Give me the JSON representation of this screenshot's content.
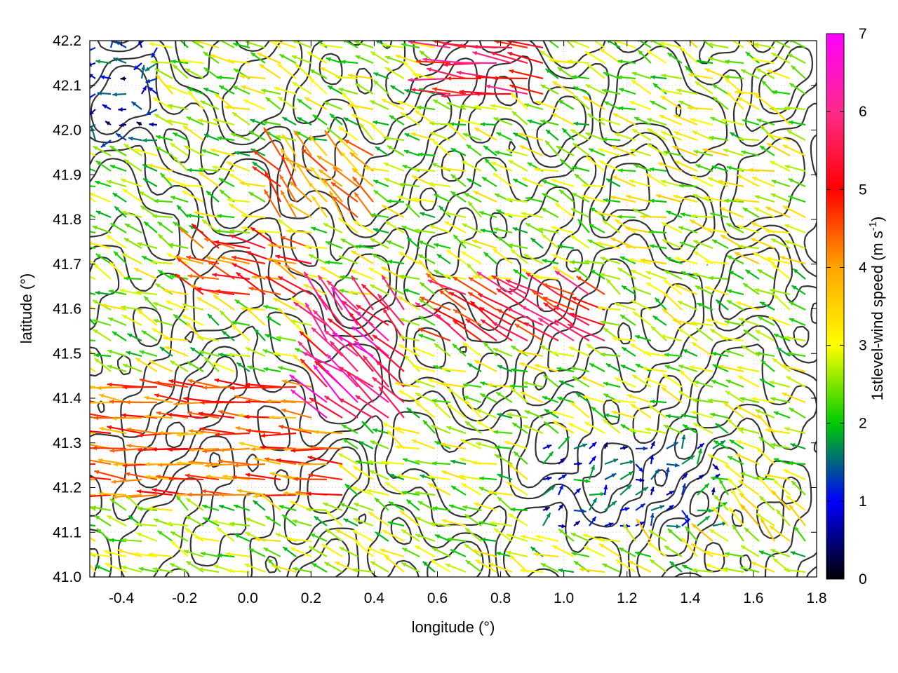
{
  "chart_data": {
    "type": "quiver",
    "title": "",
    "xlabel": "longitude (°)",
    "ylabel": "latitude (°)",
    "xlim": [
      -0.5,
      1.8
    ],
    "ylim": [
      41.0,
      42.2
    ],
    "x_ticks": [
      "-0.4",
      "-0.2",
      "0.0",
      "0.2",
      "0.4",
      "0.6",
      "0.8",
      "1.0",
      "1.2",
      "1.4",
      "1.6",
      "1.8"
    ],
    "y_ticks": [
      "41.0",
      "41.1",
      "41.2",
      "41.3",
      "41.4",
      "41.5",
      "41.6",
      "41.7",
      "41.8",
      "41.9",
      "42.0",
      "42.1",
      "42.2"
    ],
    "grid": "dotted",
    "colorbar": {
      "label_main": "1stlevel-wind speed (m s",
      "label_sup": "-1",
      "label_end": ")",
      "range": [
        0,
        7
      ],
      "ticks": [
        "0",
        "1",
        "2",
        "3",
        "4",
        "5",
        "6",
        "7"
      ],
      "colors": [
        "#000000",
        "#0000ff",
        "#00cc00",
        "#ffff00",
        "#ffa500",
        "#ff0000",
        "#ff00ff"
      ]
    },
    "wind_regions": [
      {
        "lon": [
          -0.5,
          0.3
        ],
        "lat": [
          41.15,
          41.45
        ],
        "u": -4.2,
        "v": 0.35,
        "speed": 4.3
      },
      {
        "lon": [
          -0.15,
          0.25
        ],
        "lat": [
          41.6,
          41.75
        ],
        "u": -2.2,
        "v": 0.9,
        "speed": 4.6
      },
      {
        "lon": [
          0.25,
          0.5
        ],
        "lat": [
          41.35,
          41.6
        ],
        "u": -2.0,
        "v": 1.8,
        "speed": 6.0
      },
      {
        "lon": [
          0.6,
          1.15
        ],
        "lat": [
          41.5,
          41.65
        ],
        "u": -3.0,
        "v": 1.6,
        "speed": 5.2
      },
      {
        "lon": [
          0.1,
          0.4
        ],
        "lat": [
          41.8,
          41.95
        ],
        "u": -1.5,
        "v": 1.5,
        "speed": 4.0
      },
      {
        "lon": [
          1.2,
          1.8
        ],
        "lat": [
          41.05,
          41.2
        ],
        "u": -1.7,
        "v": 1.7,
        "speed": 3.0
      },
      {
        "lon": [
          0.9,
          1.5
        ],
        "lat": [
          41.1,
          41.3
        ],
        "u": 0.8,
        "v": 0.5,
        "speed": 1.2
      },
      {
        "lon": [
          1.2,
          1.8
        ],
        "lat": [
          41.7,
          41.95
        ],
        "u": -2.6,
        "v": 0.8,
        "speed": 2.8
      },
      {
        "lon": [
          -0.5,
          -0.25
        ],
        "lat": [
          41.95,
          42.2
        ],
        "u": -0.6,
        "v": 0.1,
        "speed": 1.0
      },
      {
        "lon": [
          0.6,
          0.95
        ],
        "lat": [
          42.05,
          42.2
        ],
        "u": -3.8,
        "v": 0.5,
        "speed": 5.5
      }
    ]
  }
}
